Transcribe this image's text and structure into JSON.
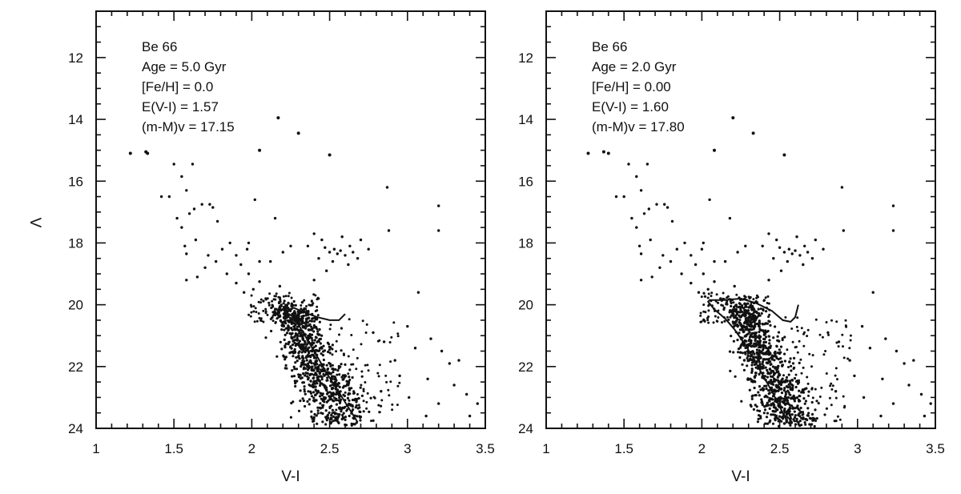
{
  "chart_data": [
    {
      "type": "scatter",
      "title": "",
      "xlabel": "V-I",
      "ylabel": "V",
      "xlim": [
        1,
        3.5
      ],
      "ylim": [
        24,
        10.5
      ],
      "y_inverted": true,
      "xticks": [
        "1",
        "1.5",
        "2",
        "2.5",
        "3",
        "3.5"
      ],
      "yticks": [
        "12",
        "14",
        "16",
        "18",
        "20",
        "22",
        "24"
      ],
      "annotations": [
        "Be 66",
        "Age = 5.0 Gyr",
        "[Fe/H] = 0.0",
        "E(V-I) = 1.57",
        "(m-M)v = 17.15"
      ],
      "isochrone": {
        "x": [
          2.68,
          2.58,
          2.48,
          2.4,
          2.33,
          2.27,
          2.22,
          2.2,
          2.22,
          2.27,
          2.34,
          2.42,
          2.5,
          2.56,
          2.6
        ],
        "y": [
          23.8,
          23.0,
          22.2,
          21.5,
          20.9,
          20.4,
          20.25,
          20.3,
          20.2,
          20.1,
          20.25,
          20.4,
          20.5,
          20.5,
          20.3
        ]
      },
      "stars": {
        "bright": [
          [
            1.22,
            15.1
          ],
          [
            1.32,
            15.05
          ],
          [
            1.33,
            15.1
          ],
          [
            2.17,
            13.95
          ],
          [
            2.3,
            14.45
          ],
          [
            2.5,
            15.15
          ],
          [
            2.05,
            15.0
          ]
        ],
        "blue_sequence": [
          [
            1.5,
            15.45
          ],
          [
            1.55,
            15.85
          ],
          [
            1.62,
            15.45
          ],
          [
            1.42,
            16.5
          ],
          [
            1.47,
            16.5
          ],
          [
            1.58,
            16.3
          ],
          [
            1.52,
            17.2
          ],
          [
            1.55,
            17.5
          ],
          [
            1.68,
            16.75
          ],
          [
            1.73,
            16.75
          ],
          [
            1.75,
            16.85
          ],
          [
            1.6,
            17.05
          ],
          [
            1.57,
            18.1
          ],
          [
            1.58,
            18.35
          ],
          [
            1.64,
            17.9
          ],
          [
            1.72,
            18.4
          ],
          [
            1.77,
            18.6
          ],
          [
            1.81,
            18.2
          ],
          [
            1.86,
            18.0
          ],
          [
            1.9,
            18.4
          ],
          [
            1.93,
            18.7
          ],
          [
            1.97,
            18.2
          ],
          [
            1.58,
            19.2
          ],
          [
            1.65,
            19.1
          ],
          [
            1.84,
            19.0
          ],
          [
            1.9,
            19.3
          ],
          [
            1.98,
            19.0
          ],
          [
            2.01,
            19.5
          ],
          [
            2.05,
            18.6
          ],
          [
            2.09,
            19.8
          ],
          [
            2.15,
            17.2
          ],
          [
            2.02,
            16.6
          ],
          [
            1.98,
            18.0
          ],
          [
            1.95,
            19.6
          ],
          [
            2.05,
            19.25
          ],
          [
            2.12,
            18.6
          ],
          [
            2.18,
            19.4
          ],
          [
            1.7,
            18.8
          ],
          [
            1.78,
            17.3
          ],
          [
            1.63,
            16.9
          ]
        ],
        "red_clump": [
          [
            2.4,
            17.7
          ],
          [
            2.45,
            17.9
          ],
          [
            2.47,
            18.15
          ],
          [
            2.5,
            18.3
          ],
          [
            2.53,
            18.2
          ],
          [
            2.55,
            18.35
          ],
          [
            2.57,
            18.25
          ],
          [
            2.6,
            18.4
          ],
          [
            2.63,
            18.1
          ],
          [
            2.65,
            18.3
          ],
          [
            2.7,
            17.9
          ],
          [
            2.52,
            18.6
          ],
          [
            2.62,
            18.7
          ],
          [
            2.68,
            18.5
          ],
          [
            2.43,
            18.5
          ],
          [
            2.75,
            18.2
          ],
          [
            2.58,
            17.8
          ],
          [
            2.48,
            18.9
          ],
          [
            2.36,
            18.1
          ],
          [
            2.4,
            19.2
          ],
          [
            2.88,
            17.6
          ],
          [
            2.87,
            16.2
          ],
          [
            3.2,
            16.8
          ],
          [
            3.2,
            17.6
          ],
          [
            2.25,
            18.1
          ],
          [
            2.2,
            18.3
          ]
        ],
        "field": [
          [
            3.0,
            20.7
          ],
          [
            3.07,
            19.6
          ],
          [
            3.05,
            21.4
          ],
          [
            3.15,
            21.1
          ],
          [
            3.22,
            21.5
          ],
          [
            3.27,
            21.9
          ],
          [
            3.33,
            21.8
          ],
          [
            3.3,
            22.6
          ],
          [
            3.38,
            22.9
          ],
          [
            3.45,
            23.2
          ],
          [
            3.13,
            22.4
          ],
          [
            3.2,
            23.2
          ],
          [
            2.95,
            22.3
          ],
          [
            3.01,
            23.0
          ],
          [
            3.12,
            23.6
          ],
          [
            3.4,
            23.6
          ],
          [
            2.85,
            21.2
          ],
          [
            2.78,
            20.9
          ],
          [
            2.92,
            21.8
          ],
          [
            2.83,
            22.8
          ]
        ]
      }
    },
    {
      "type": "scatter",
      "title": "",
      "xlabel": "V-I",
      "ylabel": "",
      "xlim": [
        1,
        3.5
      ],
      "ylim": [
        24,
        10.5
      ],
      "y_inverted": true,
      "xticks": [
        "1",
        "1.5",
        "2",
        "2.5",
        "3",
        "3.5"
      ],
      "yticks": [
        "12",
        "14",
        "16",
        "18",
        "20",
        "22",
        "24"
      ],
      "annotations": [
        "Be 66",
        "Age = 2.0 Gyr",
        "[Fe/H] = 0.00",
        "E(V-I) = 1.60",
        "(m-M)v = 17.80"
      ],
      "isochrone": {
        "x": [
          2.55,
          2.45,
          2.36,
          2.28,
          2.21,
          2.15,
          2.08,
          2.04,
          2.05,
          2.15,
          2.25,
          2.35,
          2.45,
          2.52,
          2.57,
          2.6,
          2.62
        ],
        "y": [
          23.8,
          22.8,
          22.0,
          21.3,
          20.8,
          20.45,
          20.15,
          19.9,
          19.85,
          19.85,
          19.8,
          19.95,
          20.2,
          20.5,
          20.55,
          20.4,
          20.0
        ]
      },
      "stars": {
        "bright": [
          [
            1.27,
            15.1
          ],
          [
            1.37,
            15.05
          ],
          [
            1.4,
            15.1
          ],
          [
            2.2,
            13.95
          ],
          [
            2.33,
            14.45
          ],
          [
            2.53,
            15.15
          ],
          [
            2.08,
            15.0
          ]
        ],
        "blue_sequence": [
          [
            1.53,
            15.45
          ],
          [
            1.58,
            15.85
          ],
          [
            1.65,
            15.45
          ],
          [
            1.45,
            16.5
          ],
          [
            1.5,
            16.5
          ],
          [
            1.61,
            16.3
          ],
          [
            1.55,
            17.2
          ],
          [
            1.58,
            17.5
          ],
          [
            1.71,
            16.75
          ],
          [
            1.76,
            16.75
          ],
          [
            1.78,
            16.85
          ],
          [
            1.63,
            17.05
          ],
          [
            1.6,
            18.1
          ],
          [
            1.61,
            18.35
          ],
          [
            1.67,
            17.9
          ],
          [
            1.75,
            18.4
          ],
          [
            1.8,
            18.6
          ],
          [
            1.84,
            18.2
          ],
          [
            1.89,
            18.0
          ],
          [
            1.93,
            18.4
          ],
          [
            1.96,
            18.7
          ],
          [
            2.0,
            18.2
          ],
          [
            1.61,
            19.2
          ],
          [
            1.68,
            19.1
          ],
          [
            1.87,
            19.0
          ],
          [
            1.93,
            19.3
          ],
          [
            2.01,
            19.0
          ],
          [
            2.04,
            19.5
          ],
          [
            2.08,
            18.6
          ],
          [
            2.12,
            19.8
          ],
          [
            2.18,
            17.2
          ],
          [
            2.05,
            16.6
          ],
          [
            2.01,
            18.0
          ],
          [
            1.98,
            19.6
          ],
          [
            2.08,
            19.25
          ],
          [
            2.15,
            18.6
          ],
          [
            2.21,
            19.4
          ],
          [
            1.73,
            18.8
          ],
          [
            1.81,
            17.3
          ],
          [
            1.66,
            16.9
          ]
        ],
        "red_clump": [
          [
            2.43,
            17.7
          ],
          [
            2.48,
            17.9
          ],
          [
            2.5,
            18.15
          ],
          [
            2.53,
            18.3
          ],
          [
            2.56,
            18.2
          ],
          [
            2.58,
            18.35
          ],
          [
            2.6,
            18.25
          ],
          [
            2.63,
            18.4
          ],
          [
            2.66,
            18.1
          ],
          [
            2.68,
            18.3
          ],
          [
            2.73,
            17.9
          ],
          [
            2.55,
            18.6
          ],
          [
            2.65,
            18.7
          ],
          [
            2.71,
            18.5
          ],
          [
            2.46,
            18.5
          ],
          [
            2.78,
            18.2
          ],
          [
            2.61,
            17.8
          ],
          [
            2.51,
            18.9
          ],
          [
            2.39,
            18.1
          ],
          [
            2.43,
            19.2
          ],
          [
            2.91,
            17.6
          ],
          [
            2.9,
            16.2
          ],
          [
            3.23,
            16.8
          ],
          [
            3.23,
            17.6
          ],
          [
            2.28,
            18.1
          ],
          [
            2.23,
            18.3
          ]
        ],
        "field": [
          [
            3.03,
            20.7
          ],
          [
            3.1,
            19.6
          ],
          [
            3.08,
            21.4
          ],
          [
            3.18,
            21.1
          ],
          [
            3.25,
            21.5
          ],
          [
            3.3,
            21.9
          ],
          [
            3.36,
            21.8
          ],
          [
            3.33,
            22.6
          ],
          [
            3.41,
            22.9
          ],
          [
            3.47,
            23.2
          ],
          [
            3.16,
            22.4
          ],
          [
            3.23,
            23.2
          ],
          [
            2.98,
            22.3
          ],
          [
            3.04,
            23.0
          ],
          [
            3.15,
            23.6
          ],
          [
            3.43,
            23.6
          ],
          [
            2.88,
            21.2
          ],
          [
            2.81,
            20.9
          ],
          [
            2.95,
            21.8
          ],
          [
            2.86,
            22.8
          ]
        ]
      }
    }
  ]
}
